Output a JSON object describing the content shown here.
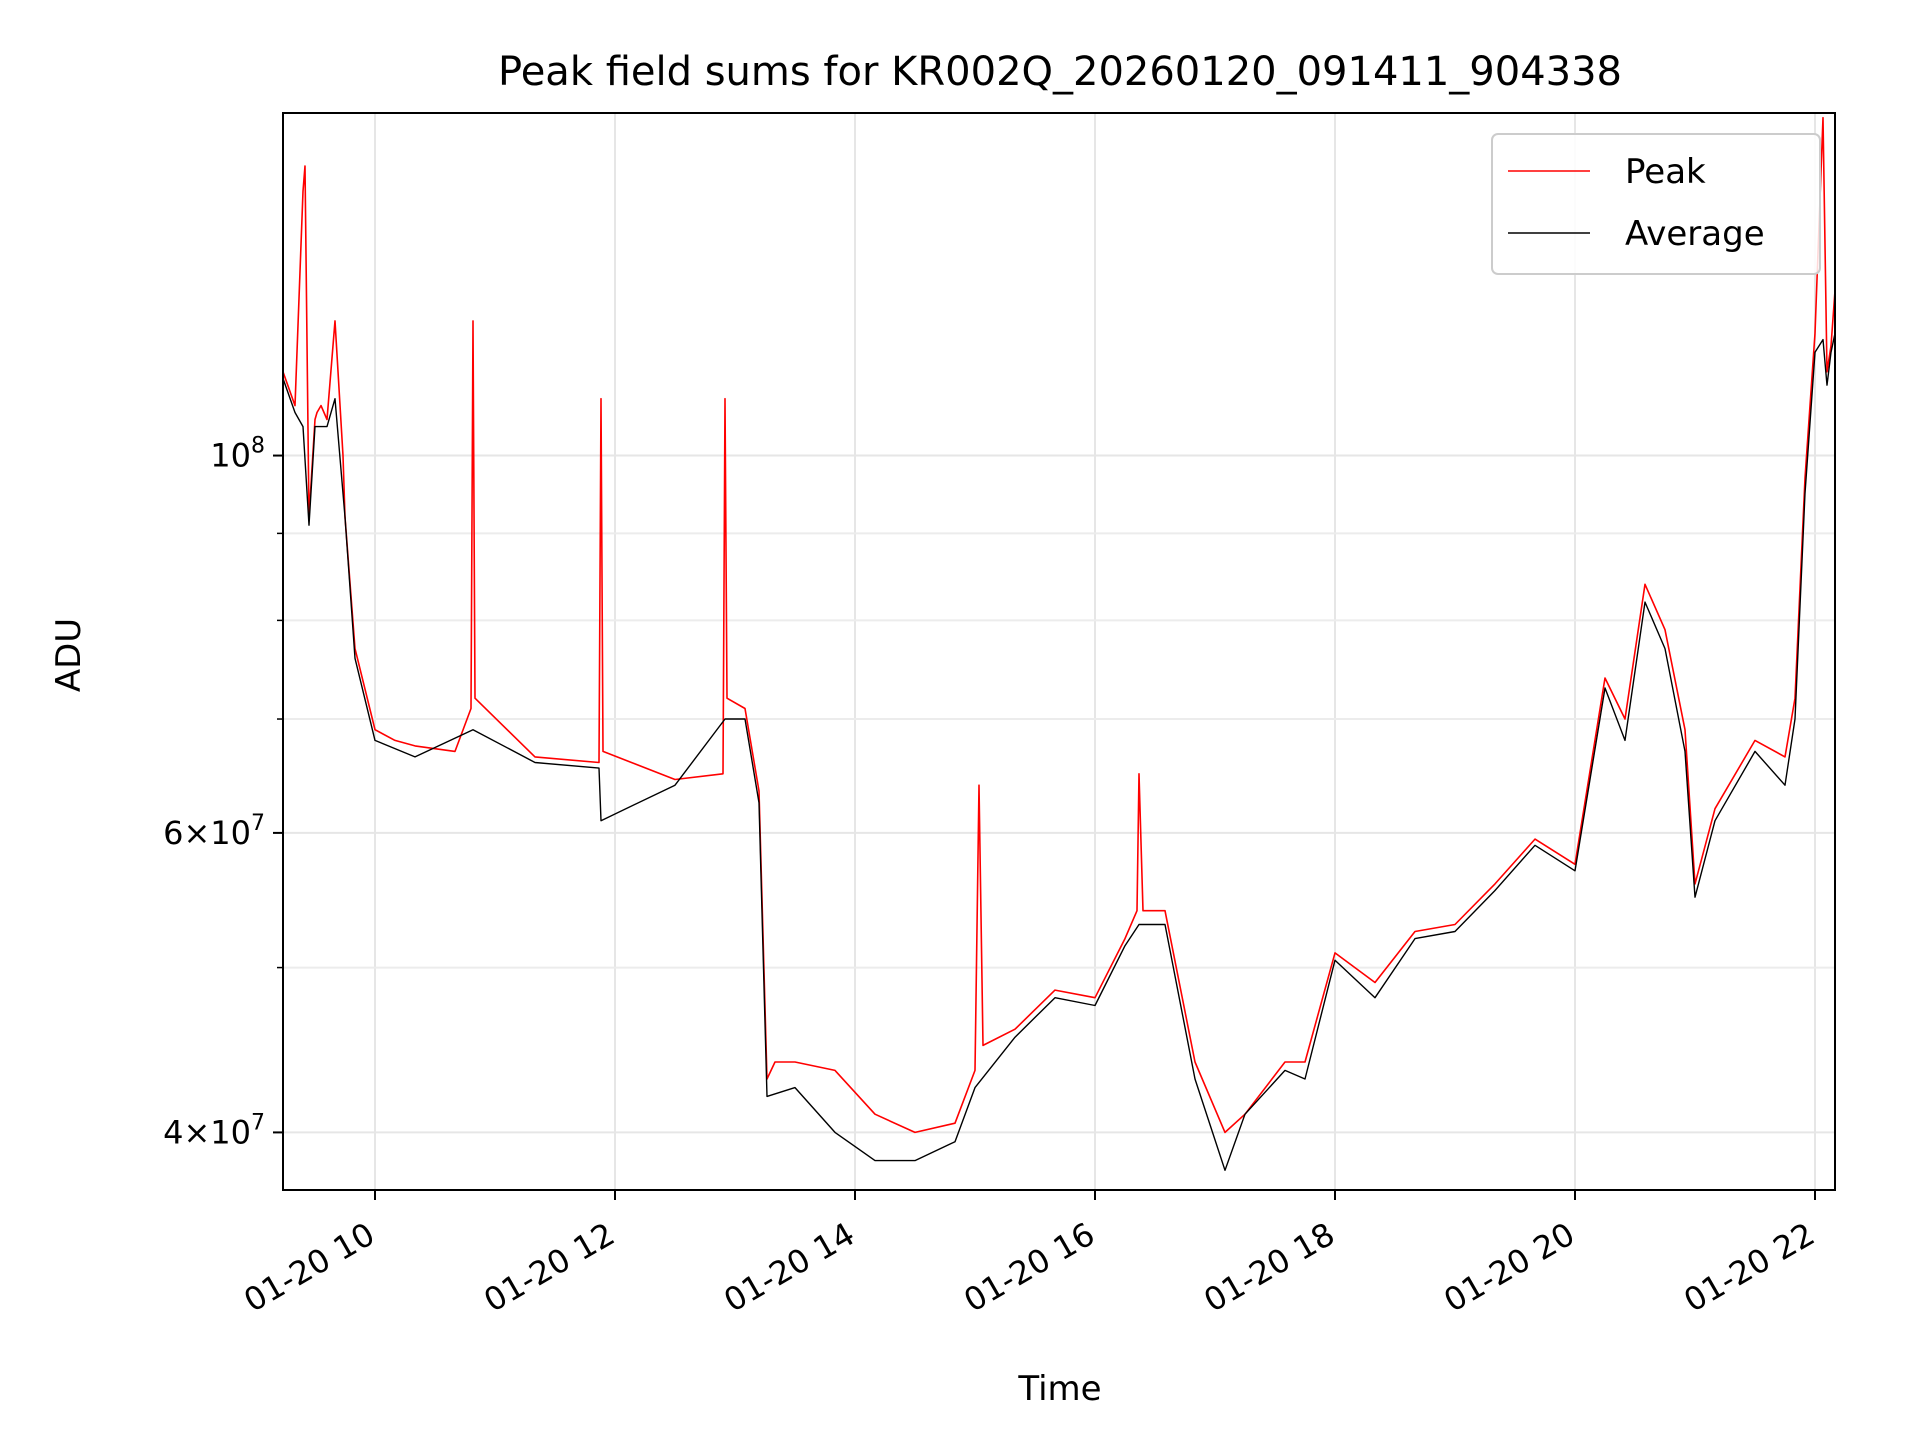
{
  "chart_data": {
    "type": "line",
    "title": "Peak field sums for KR002Q_20260120_091411_904338",
    "xlabel": "Time",
    "ylabel": "ADU",
    "y_scale": "log",
    "x_range": [
      "2026-01-20 09:14",
      "2026-01-20 22:10"
    ],
    "ylim": [
      37000000,
      159000000
    ],
    "grid": true,
    "legend_position": "top-right",
    "x_ticks": [
      {
        "value": "2026-01-20 10:00",
        "label": "01-20 10"
      },
      {
        "value": "2026-01-20 12:00",
        "label": "01-20 12"
      },
      {
        "value": "2026-01-20 14:00",
        "label": "01-20 14"
      },
      {
        "value": "2026-01-20 16:00",
        "label": "01-20 16"
      },
      {
        "value": "2026-01-20 18:00",
        "label": "01-20 18"
      },
      {
        "value": "2026-01-20 20:00",
        "label": "01-20 20"
      },
      {
        "value": "2026-01-20 22:00",
        "label": "01-20 22"
      }
    ],
    "y_major_ticks": [
      {
        "value": 40000000,
        "base": "4×10",
        "exp": "7"
      },
      {
        "value": 60000000,
        "base": "6×10",
        "exp": "7"
      },
      {
        "value": 100000000,
        "base": "10",
        "exp": "8"
      }
    ],
    "y_minor_ticks": [
      50000000,
      70000000,
      80000000,
      90000000
    ],
    "series": [
      {
        "name": "Peak",
        "color": "#ff0000",
        "x": [
          "2026-01-20 09:14",
          "2026-01-20 09:20",
          "2026-01-20 09:24",
          "2026-01-20 09:25",
          "2026-01-20 09:27",
          "2026-01-20 09:30",
          "2026-01-20 09:31",
          "2026-01-20 09:33",
          "2026-01-20 09:36",
          "2026-01-20 09:40",
          "2026-01-20 09:44",
          "2026-01-20 09:45",
          "2026-01-20 09:50",
          "2026-01-20 10:00",
          "2026-01-20 10:10",
          "2026-01-20 10:20",
          "2026-01-20 10:40",
          "2026-01-20 10:48",
          "2026-01-20 10:49",
          "2026-01-20 10:50",
          "2026-01-20 11:20",
          "2026-01-20 11:52",
          "2026-01-20 11:53",
          "2026-01-20 11:54",
          "2026-01-20 12:30",
          "2026-01-20 12:54",
          "2026-01-20 12:55",
          "2026-01-20 12:56",
          "2026-01-20 13:05",
          "2026-01-20 13:12",
          "2026-01-20 13:16",
          "2026-01-20 13:20",
          "2026-01-20 13:30",
          "2026-01-20 13:50",
          "2026-01-20 14:10",
          "2026-01-20 14:30",
          "2026-01-20 14:50",
          "2026-01-20 15:00",
          "2026-01-20 15:02",
          "2026-01-20 15:04",
          "2026-01-20 15:20",
          "2026-01-20 15:40",
          "2026-01-20 16:00",
          "2026-01-20 16:15",
          "2026-01-20 16:21",
          "2026-01-20 16:22",
          "2026-01-20 16:24",
          "2026-01-20 16:35",
          "2026-01-20 16:50",
          "2026-01-20 17:05",
          "2026-01-20 17:15",
          "2026-01-20 17:35",
          "2026-01-20 17:45",
          "2026-01-20 18:00",
          "2026-01-20 18:20",
          "2026-01-20 18:40",
          "2026-01-20 19:00",
          "2026-01-20 19:20",
          "2026-01-20 19:40",
          "2026-01-20 20:00",
          "2026-01-20 20:15",
          "2026-01-20 20:25",
          "2026-01-20 20:35",
          "2026-01-20 20:45",
          "2026-01-20 20:55",
          "2026-01-20 21:00",
          "2026-01-20 21:10",
          "2026-01-20 21:30",
          "2026-01-20 21:45",
          "2026-01-20 21:50",
          "2026-01-20 21:55",
          "2026-01-20 22:00",
          "2026-01-20 22:04",
          "2026-01-20 22:06",
          "2026-01-20 22:08",
          "2026-01-20 22:10"
        ],
        "values": [
          112000000,
          107000000,
          143000000,
          148000000,
          92000000,
          105000000,
          106000000,
          107000000,
          105000000,
          120000000,
          100000000,
          92000000,
          77000000,
          69000000,
          68000000,
          67500000,
          67000000,
          71000000,
          120000000,
          72000000,
          66500000,
          66000000,
          108000000,
          67000000,
          64500000,
          65000000,
          108000000,
          72000000,
          71000000,
          63500000,
          43000000,
          44000000,
          44000000,
          43500000,
          41000000,
          40000000,
          40500000,
          43500000,
          64000000,
          45000000,
          46000000,
          48500000,
          48000000,
          52000000,
          54000000,
          65000000,
          54000000,
          54000000,
          44000000,
          40000000,
          41000000,
          44000000,
          44000000,
          51000000,
          49000000,
          52500000,
          53000000,
          56000000,
          59500000,
          57500000,
          74000000,
          70000000,
          84000000,
          79000000,
          69000000,
          56000000,
          62000000,
          68000000,
          66500000,
          72000000,
          97000000,
          118000000,
          158000000,
          112000000,
          116000000,
          125000000
        ]
      },
      {
        "name": "Average",
        "color": "#000000",
        "x": [
          "2026-01-20 09:14",
          "2026-01-20 09:20",
          "2026-01-20 09:24",
          "2026-01-20 09:27",
          "2026-01-20 09:30",
          "2026-01-20 09:36",
          "2026-01-20 09:40",
          "2026-01-20 09:45",
          "2026-01-20 09:50",
          "2026-01-20 10:00",
          "2026-01-20 10:20",
          "2026-01-20 10:49",
          "2026-01-20 11:20",
          "2026-01-20 11:52",
          "2026-01-20 11:53",
          "2026-01-20 12:30",
          "2026-01-20 12:55",
          "2026-01-20 13:05",
          "2026-01-20 13:12",
          "2026-01-20 13:16",
          "2026-01-20 13:30",
          "2026-01-20 13:50",
          "2026-01-20 14:10",
          "2026-01-20 14:30",
          "2026-01-20 14:50",
          "2026-01-20 15:00",
          "2026-01-20 15:20",
          "2026-01-20 15:40",
          "2026-01-20 16:00",
          "2026-01-20 16:15",
          "2026-01-20 16:22",
          "2026-01-20 16:35",
          "2026-01-20 16:50",
          "2026-01-20 17:05",
          "2026-01-20 17:15",
          "2026-01-20 17:35",
          "2026-01-20 17:45",
          "2026-01-20 18:00",
          "2026-01-20 18:20",
          "2026-01-20 18:40",
          "2026-01-20 19:00",
          "2026-01-20 19:20",
          "2026-01-20 19:40",
          "2026-01-20 20:00",
          "2026-01-20 20:15",
          "2026-01-20 20:25",
          "2026-01-20 20:35",
          "2026-01-20 20:45",
          "2026-01-20 20:55",
          "2026-01-20 21:00",
          "2026-01-20 21:10",
          "2026-01-20 21:30",
          "2026-01-20 21:45",
          "2026-01-20 21:50",
          "2026-01-20 21:55",
          "2026-01-20 22:00",
          "2026-01-20 22:04",
          "2026-01-20 22:06",
          "2026-01-20 22:08",
          "2026-01-20 22:10"
        ],
        "values": [
          111000000,
          106000000,
          104000000,
          91000000,
          104000000,
          104000000,
          108000000,
          92000000,
          76000000,
          68000000,
          66500000,
          69000000,
          66000000,
          65500000,
          61000000,
          64000000,
          70000000,
          70000000,
          62500000,
          42000000,
          42500000,
          40000000,
          38500000,
          38500000,
          39500000,
          42500000,
          45500000,
          48000000,
          47500000,
          51500000,
          53000000,
          53000000,
          43000000,
          38000000,
          41000000,
          43500000,
          43000000,
          50500000,
          48000000,
          52000000,
          52500000,
          55500000,
          59000000,
          57000000,
          73000000,
          68000000,
          82000000,
          77000000,
          67000000,
          55000000,
          61000000,
          67000000,
          64000000,
          70000000,
          95000000,
          115000000,
          117000000,
          110000000,
          115000000,
          118000000
        ]
      }
    ]
  }
}
